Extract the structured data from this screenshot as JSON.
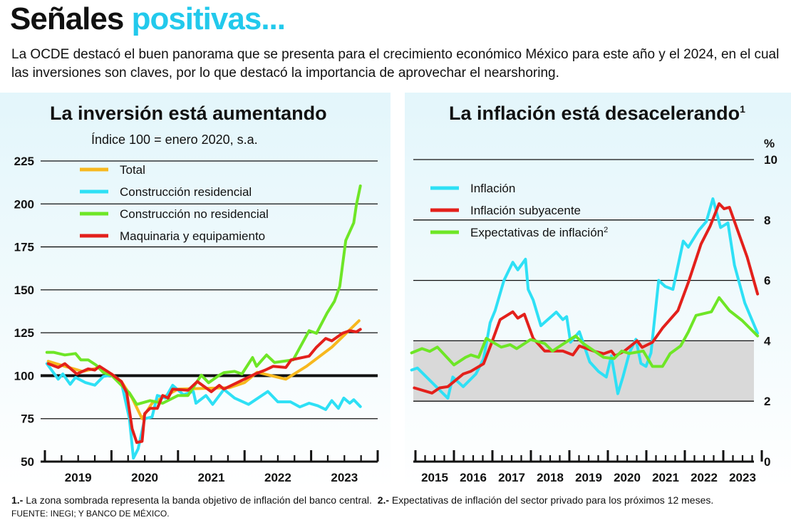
{
  "header": {
    "title_part1": "Señales",
    "title_part2": "positivas...",
    "title_accent_color": "#22c9ec",
    "intro": "La OCDE destacó el buen panorama que se presenta para el crecimiento económico México para este año y el 2024, en el cual las inversiones son claves, por lo que destacó la importancia de aprovechar el nearshoring."
  },
  "footer": {
    "note1_num": "1.-",
    "note1": "La zona sombrada representa la banda objetivo de inflación del banco central.",
    "note2_num": "2.-",
    "note2": "Expectativas de inflación del sector privado para los próximos 12 meses.",
    "source": "FUENTE: INEGI; Y BANCO DE MÉXICO."
  },
  "chart_data": [
    {
      "type": "line",
      "title": "La inversión está aumentando",
      "subtitle": "Índice 100 = enero 2020, s.a.",
      "ylim": [
        50,
        225
      ],
      "yticks": [
        225,
        200,
        175,
        150,
        125,
        100,
        75,
        50
      ],
      "reference_line": 100,
      "xlim": [
        2019,
        2024
      ],
      "xticks": [
        "2019",
        "2020",
        "2021",
        "2022",
        "2023"
      ],
      "grid": true,
      "legend": "top-left",
      "series": [
        {
          "name": "Total",
          "color": "#f7b81e",
          "x": [
            2019.05,
            2019.3,
            2019.57,
            2019.82,
            2020.0,
            2020.15,
            2020.31,
            2020.46,
            2020.61,
            2021.0,
            2021.77,
            2022.0,
            2022.19,
            2022.62,
            2022.93,
            2023.31,
            2023.72
          ],
          "y": [
            108.4,
            105.5,
            102.5,
            104.8,
            101,
            96.6,
            87,
            75,
            84,
            92.2,
            93,
            96,
            102,
            98,
            105.5,
            116.6,
            132
          ]
        },
        {
          "name": "Construcción residencial",
          "color": "#2ee0f5",
          "x": [
            2019.03,
            2019.2,
            2019.27,
            2019.38,
            2019.46,
            2019.61,
            2019.75,
            2019.88,
            2020.0,
            2020.15,
            2020.27,
            2020.33,
            2020.4,
            2020.5,
            2020.61,
            2020.69,
            2020.81,
            2020.92,
            2021.08,
            2021.23,
            2021.27,
            2021.42,
            2021.52,
            2021.69,
            2021.85,
            2022.06,
            2022.35,
            2022.5,
            2022.69,
            2022.83,
            2022.97,
            2023.1,
            2023.22,
            2023.31,
            2023.41,
            2023.49,
            2023.58,
            2023.64,
            2023.74
          ],
          "y": [
            107,
            98,
            101,
            95,
            99,
            96,
            94.5,
            99.6,
            100.3,
            96,
            75,
            52,
            57.4,
            75,
            76,
            88.5,
            87,
            94.4,
            89,
            90.8,
            84,
            88.5,
            83.3,
            92,
            87,
            83.3,
            90.8,
            84.8,
            84.8,
            81.8,
            84,
            82.5,
            80.3,
            85.5,
            81,
            87,
            84,
            86,
            82
          ]
        },
        {
          "name": "Construcción no residencial",
          "color": "#6ee626",
          "x": [
            2019.03,
            2019.13,
            2019.3,
            2019.46,
            2019.54,
            2019.65,
            2019.77,
            2019.88,
            2020.0,
            2020.15,
            2020.27,
            2020.38,
            2020.58,
            2020.77,
            2021.0,
            2021.15,
            2021.35,
            2021.46,
            2021.62,
            2021.69,
            2021.85,
            2021.96,
            2022.12,
            2022.18,
            2022.33,
            2022.45,
            2022.73,
            2022.97,
            2023.08,
            2023.24,
            2023.35,
            2023.43,
            2023.52,
            2023.64,
            2023.68,
            2023.74
          ],
          "y": [
            113.6,
            113.6,
            112.1,
            112.9,
            109.2,
            109.2,
            106.2,
            101.8,
            100.3,
            94.4,
            90,
            83.3,
            85.5,
            84,
            88.5,
            88.5,
            100.3,
            95.9,
            100.3,
            101.8,
            102.5,
            101,
            110.6,
            105.5,
            112.1,
            107.7,
            109.2,
            126.2,
            124.7,
            136.5,
            143.3,
            152,
            178.7,
            189,
            199.4,
            210.5
          ]
        },
        {
          "name": "Maquinaria y equipamiento",
          "color": "#e3201b",
          "x": [
            2019.05,
            2019.2,
            2019.3,
            2019.48,
            2019.65,
            2019.75,
            2019.82,
            2020.0,
            2020.15,
            2020.23,
            2020.31,
            2020.38,
            2020.46,
            2020.5,
            2020.58,
            2020.69,
            2020.77,
            2020.85,
            2020.92,
            2021.15,
            2021.29,
            2021.5,
            2021.62,
            2021.69,
            2021.96,
            2022.16,
            2022.31,
            2022.43,
            2022.62,
            2022.7,
            2022.97,
            2023.08,
            2023.22,
            2023.31,
            2023.47,
            2023.58,
            2023.68,
            2023.74
          ],
          "y": [
            107,
            104.8,
            107,
            101,
            104,
            103.3,
            105.5,
            101,
            96.6,
            90,
            69.2,
            61.1,
            61.8,
            78,
            81,
            81,
            88.5,
            87,
            92.2,
            91.5,
            96.6,
            90.7,
            94.4,
            92.2,
            97.3,
            101,
            103.3,
            105.5,
            104.8,
            109.2,
            111.4,
            116.6,
            121.7,
            120.3,
            124.7,
            126.2,
            125.5,
            127
          ]
        }
      ]
    },
    {
      "type": "line",
      "title": "La inflación está desacelerando",
      "title_superscript": "1",
      "ylabel": "%",
      "ylim": [
        0,
        10
      ],
      "yticks": [
        10,
        8,
        6,
        4,
        2,
        0
      ],
      "shaded_band": [
        2,
        4
      ],
      "shaded_color": "#d9d9d9",
      "xlim": [
        2015,
        2024
      ],
      "xticks": [
        "2015",
        "2016",
        "2017",
        "2018",
        "2019",
        "2020",
        "2021",
        "2022",
        "2023"
      ],
      "grid": true,
      "legend": "top-left",
      "series": [
        {
          "name": "Inflación",
          "color": "#2ee0f5",
          "x": [
            2014.9,
            2015.05,
            2015.84,
            2015.97,
            2016.24,
            2016.57,
            2016.77,
            2016.94,
            2017.07,
            2017.3,
            2017.53,
            2017.66,
            2017.86,
            2017.93,
            2018.06,
            2018.26,
            2018.66,
            2018.83,
            2018.93,
            2019.03,
            2019.26,
            2019.53,
            2019.76,
            2019.96,
            2020.09,
            2020.26,
            2020.39,
            2020.56,
            2020.73,
            2020.86,
            2020.99,
            2021.12,
            2021.32,
            2021.49,
            2021.69,
            2021.96,
            2022.09,
            2022.36,
            2022.56,
            2022.73,
            2022.93,
            2023.12,
            2023.29,
            2023.56,
            2023.89
          ],
          "y": [
            3.03,
            3.1,
            2.1,
            2.8,
            2.48,
            2.9,
            3.4,
            4.6,
            5.0,
            6.0,
            6.6,
            6.35,
            6.7,
            5.7,
            5.35,
            4.5,
            4.95,
            4.7,
            4.8,
            3.95,
            4.3,
            3.3,
            2.98,
            2.8,
            3.5,
            2.25,
            2.8,
            3.6,
            4.05,
            3.25,
            3.15,
            3.6,
            6.0,
            5.8,
            5.7,
            7.3,
            7.1,
            7.65,
            7.95,
            8.7,
            7.75,
            7.9,
            6.5,
            5.25,
            4.25
          ]
        },
        {
          "name": "Inflación subyacente",
          "color": "#e3201b",
          "x": [
            2014.97,
            2015.43,
            2015.63,
            2015.84,
            2016.24,
            2016.44,
            2016.77,
            2016.97,
            2017.2,
            2017.53,
            2017.66,
            2017.83,
            2018.06,
            2018.36,
            2018.83,
            2019.09,
            2019.26,
            2019.63,
            2019.89,
            2020.09,
            2020.19,
            2020.43,
            2020.76,
            2020.89,
            2021.16,
            2021.42,
            2021.82,
            2022.09,
            2022.42,
            2022.66,
            2022.89,
            2023.02,
            2023.16,
            2023.62,
            2023.89
          ],
          "y": [
            2.44,
            2.27,
            2.44,
            2.48,
            2.9,
            2.99,
            3.24,
            3.9,
            4.7,
            4.96,
            4.75,
            4.88,
            4.08,
            3.66,
            3.66,
            3.53,
            3.83,
            3.66,
            3.57,
            3.66,
            3.5,
            3.66,
            4.0,
            3.78,
            3.95,
            4.42,
            5.0,
            5.93,
            7.2,
            7.8,
            8.54,
            8.37,
            8.42,
            6.77,
            5.55
          ]
        },
        {
          "name": "Expectativas de inflación",
          "name_superscript": "2",
          "color": "#6ee626",
          "x": [
            2014.9,
            2015.17,
            2015.37,
            2015.57,
            2016.0,
            2016.3,
            2016.44,
            2016.64,
            2016.84,
            2017.23,
            2017.46,
            2017.63,
            2017.99,
            2018.36,
            2018.56,
            2019.16,
            2019.36,
            2019.89,
            2020.16,
            2020.36,
            2020.56,
            2020.92,
            2021.16,
            2021.42,
            2021.62,
            2021.89,
            2022.09,
            2022.29,
            2022.69,
            2022.89,
            2023.16,
            2023.49,
            2023.89
          ],
          "y": [
            3.6,
            3.74,
            3.65,
            3.79,
            3.2,
            3.45,
            3.53,
            3.45,
            4.08,
            3.79,
            3.87,
            3.74,
            4.04,
            3.91,
            3.66,
            4.16,
            3.91,
            3.45,
            3.41,
            3.66,
            3.58,
            3.66,
            3.15,
            3.15,
            3.58,
            3.83,
            4.29,
            4.84,
            4.96,
            5.43,
            5.0,
            4.67,
            4.16
          ]
        }
      ]
    }
  ]
}
